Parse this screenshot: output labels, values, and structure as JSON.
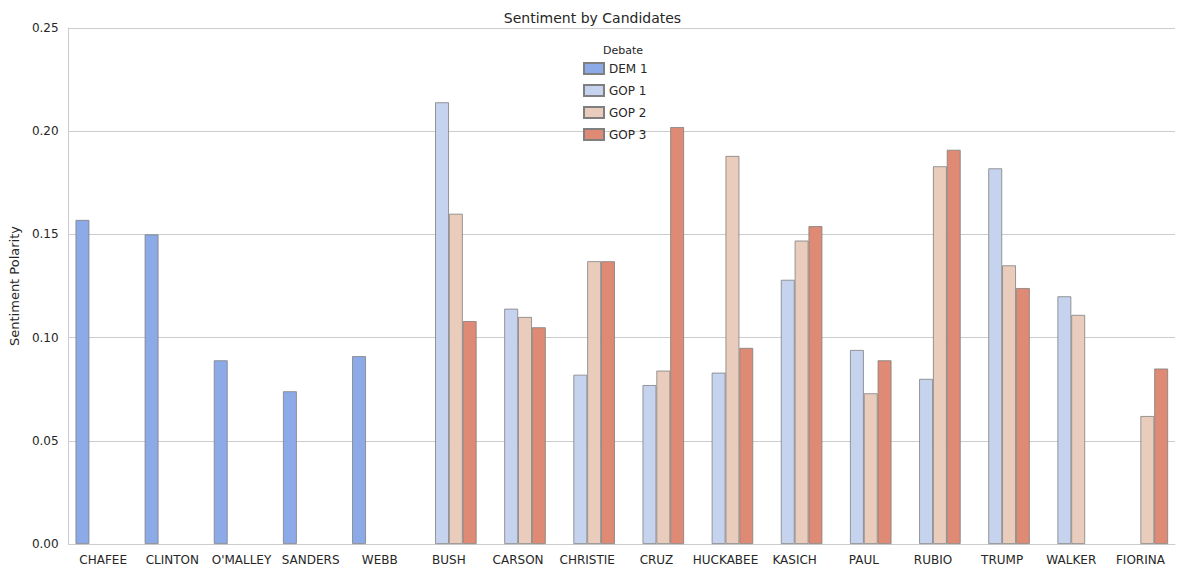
{
  "chart_data": {
    "type": "bar",
    "title": "Sentiment by Candidates",
    "y_label": "Sentiment Polarity",
    "legend_title": "Debate",
    "legend": "upper center",
    "grid": true,
    "categories": [
      "CHAFEE",
      "CLINTON",
      "O'MALLEY",
      "SANDERS",
      "WEBB",
      "BUSH",
      "CARSON",
      "CHRISTIE",
      "CRUZ",
      "HUCKABEE",
      "KASICH",
      "PAUL",
      "RUBIO",
      "TRUMP",
      "WALKER",
      "FIORINA"
    ],
    "series": [
      {
        "name": "DEM 1",
        "color": "#8caae8",
        "values": [
          0.157,
          0.15,
          0.089,
          0.074,
          0.091,
          null,
          null,
          null,
          null,
          null,
          null,
          null,
          null,
          null,
          null,
          null
        ]
      },
      {
        "name": "GOP 1",
        "color": "#c6d3ee",
        "values": [
          null,
          null,
          null,
          null,
          null,
          0.214,
          0.114,
          0.082,
          0.077,
          0.083,
          0.128,
          0.094,
          0.08,
          0.182,
          0.12,
          null
        ]
      },
      {
        "name": "GOP 2",
        "color": "#eaccbc",
        "values": [
          null,
          null,
          null,
          null,
          null,
          0.16,
          0.11,
          0.137,
          0.084,
          0.188,
          0.147,
          0.073,
          0.183,
          0.135,
          0.111,
          0.062
        ]
      },
      {
        "name": "GOP 3",
        "color": "#de8a74",
        "values": [
          null,
          null,
          null,
          null,
          null,
          0.108,
          0.105,
          0.137,
          0.202,
          0.095,
          0.154,
          0.089,
          0.191,
          0.124,
          null,
          0.085
        ]
      }
    ],
    "ylim": [
      0,
      0.25
    ],
    "yticks": [
      {
        "value": 0,
        "label": "0.00"
      },
      0.05,
      {
        "value": 0.1,
        "label": "0.10"
      },
      0.15,
      {
        "value": 0.2,
        "label": "0.20"
      },
      0.25
    ]
  }
}
